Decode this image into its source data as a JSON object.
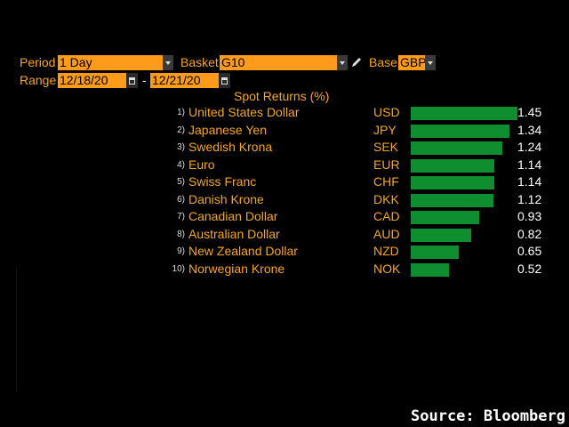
{
  "controls": {
    "period_label": "Period",
    "period_value": "1 Day",
    "basket_label": "Basket",
    "basket_value": "G10",
    "base_label": "Base",
    "base_value": "GBP",
    "range_label": "Range",
    "range_start": "12/18/20",
    "range_sep": "-",
    "range_end": "12/21/20"
  },
  "icons": {
    "dropdown": "chevron-down-icon",
    "calendar": "calendar-icon",
    "edit": "pencil-icon"
  },
  "colors": {
    "accent": "#f5a623",
    "field_bg": "#ff9a1a",
    "bar": "#0e8e2e"
  },
  "chart_data": {
    "type": "bar",
    "title": "Spot Returns (%)",
    "categories": [
      "United States Dollar",
      "Japanese Yen",
      "Swedish Krona",
      "Euro",
      "Swiss Franc",
      "Danish Krone",
      "Canadian Dollar",
      "Australian Dollar",
      "New Zealand Dollar",
      "Norwegian Krone"
    ],
    "ranks": [
      "1)",
      "2)",
      "3)",
      "4)",
      "5)",
      "6)",
      "7)",
      "8)",
      "9)",
      "10)"
    ],
    "codes": [
      "USD",
      "JPY",
      "SEK",
      "EUR",
      "CHF",
      "DKK",
      "CAD",
      "AUD",
      "NZD",
      "NOK"
    ],
    "values": [
      1.45,
      1.34,
      1.24,
      1.14,
      1.14,
      1.12,
      0.93,
      0.82,
      0.65,
      0.52
    ],
    "value_labels": [
      "1.45",
      "1.34",
      "1.24",
      "1.14",
      "1.14",
      "1.12",
      "0.93",
      "0.82",
      "0.65",
      "0.52"
    ],
    "xlim": [
      0,
      1.45
    ]
  },
  "source": "Source: Bloomberg"
}
